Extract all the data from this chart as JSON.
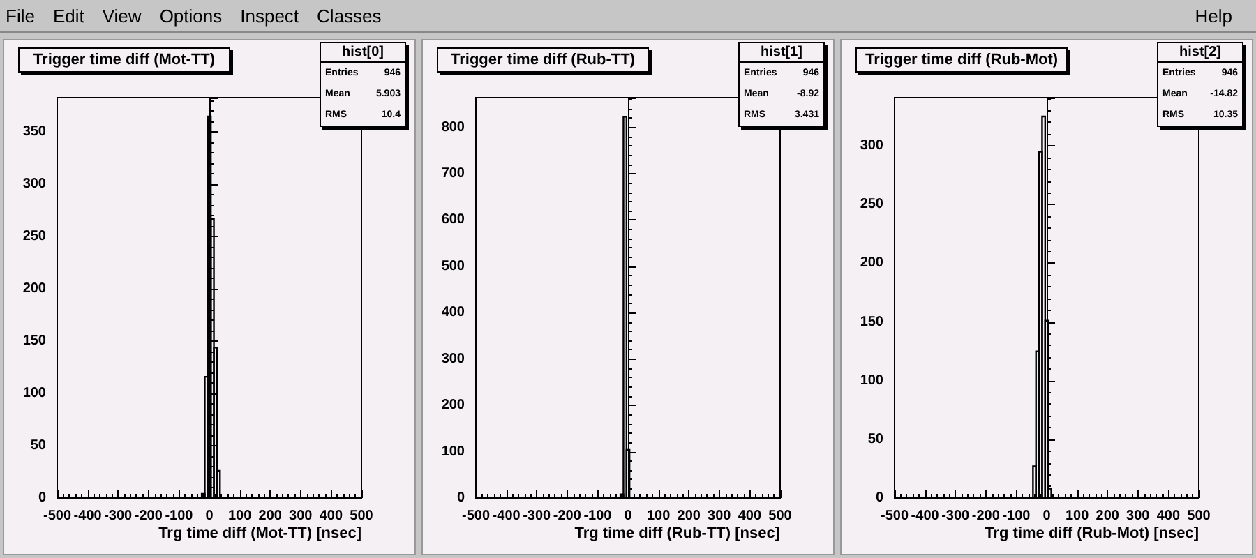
{
  "chart_data": [
    {
      "type": "other",
      "annotations": [
        "File",
        "Edit",
        "View",
        "Options",
        "Inspect",
        "Classes",
        "Help"
      ]
    },
    {
      "type": "histogram",
      "title": "Trigger time diff (Mot-TT)",
      "xlabel": "Trg time diff (Mot-TT) [nsec]",
      "color": "#000000",
      "bins": [
        -25,
        -15,
        -5,
        5,
        15,
        25,
        35
      ],
      "values": [
        4,
        116,
        365,
        267,
        144,
        26
      ],
      "xlim": [
        -500,
        500
      ],
      "xticks": [
        -500,
        -400,
        -300,
        -200,
        -100,
        0,
        100,
        200,
        300,
        400,
        500
      ],
      "ylim": [
        0,
        383
      ],
      "yticks": [
        0,
        50,
        100,
        150,
        200,
        250,
        300,
        350
      ],
      "annotations": [
        "hist[0]",
        "Entries",
        "946",
        "Mean",
        "5.903",
        "RMS",
        "10.4"
      ]
    },
    {
      "type": "histogram",
      "title": "Trigger time diff (Rub-TT)",
      "xlabel": "Trg time diff (Rub-TT) [nsec]",
      "color": "#000000",
      "bins": [
        -25,
        -15,
        -5,
        5
      ],
      "values": [
        8,
        823,
        104
      ],
      "xlim": [
        -500,
        500
      ],
      "xticks": [
        -500,
        -400,
        -300,
        -200,
        -100,
        0,
        100,
        200,
        300,
        400,
        500
      ],
      "ylim": [
        0,
        864
      ],
      "yticks": [
        0,
        100,
        200,
        300,
        400,
        500,
        600,
        700,
        800
      ],
      "annotations": [
        "hist[1]",
        "Entries",
        "946",
        "Mean",
        "-8.92",
        "RMS",
        "3.431"
      ]
    },
    {
      "type": "histogram",
      "title": "Trigger time diff (Rub-Mot)",
      "xlabel": "Trg time diff (Rub-Mot) [nsec]",
      "color": "#000000",
      "bins": [
        -45,
        -35,
        -25,
        -15,
        -5,
        5,
        15
      ],
      "values": [
        27,
        125,
        295,
        325,
        151,
        8
      ],
      "xlim": [
        -500,
        500
      ],
      "xticks": [
        -500,
        -400,
        -300,
        -200,
        -100,
        0,
        100,
        200,
        300,
        400,
        500
      ],
      "ylim": [
        0,
        341
      ],
      "yticks": [
        0,
        50,
        100,
        150,
        200,
        250,
        300
      ],
      "annotations": [
        "hist[2]",
        "Entries",
        "946",
        "Mean",
        "-14.82",
        "RMS",
        "10.35"
      ]
    }
  ]
}
